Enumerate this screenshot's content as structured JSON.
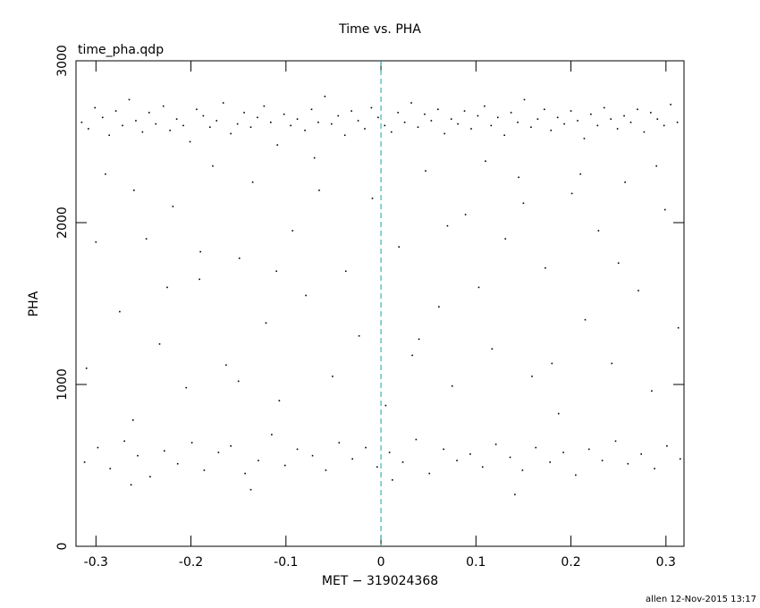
{
  "chart_data": {
    "type": "scatter",
    "title": "Time vs. PHA",
    "subtitle": "time_pha.qdp",
    "x_label": "MET − 319024368",
    "y_label": "PHA",
    "footer": "allen 12-Nov-2015 13:17",
    "xlim": [
      -0.321,
      0.319
    ],
    "xticks": [
      -0.3,
      -0.2,
      -0.1,
      0,
      0.1,
      0.2,
      0.3
    ],
    "ylim": [
      0,
      3000
    ],
    "yticks": [
      0,
      1000,
      2000,
      3000
    ],
    "marker_line_color": "#1aa3a3",
    "series": [
      {
        "color": "#000000",
        "x": [
          -0.315,
          -0.308,
          -0.301,
          -0.293,
          -0.286,
          -0.279,
          -0.272,
          -0.265,
          -0.258,
          -0.251,
          -0.244,
          -0.237,
          -0.229,
          -0.222,
          -0.215,
          -0.208,
          -0.201,
          -0.194,
          -0.187,
          -0.18,
          -0.173,
          -0.166,
          -0.158,
          -0.151,
          -0.144,
          -0.137,
          -0.13,
          -0.123,
          -0.116,
          -0.109,
          -0.102,
          -0.095,
          -0.088,
          -0.08,
          -0.073,
          -0.066,
          -0.059,
          -0.052,
          -0.045,
          -0.038,
          -0.031,
          -0.024,
          -0.017,
          -0.01,
          -0.003,
          0.004,
          0.011,
          0.018,
          0.025,
          0.032,
          0.039,
          0.046,
          0.053,
          0.06,
          0.067,
          0.074,
          0.081,
          0.088,
          0.095,
          0.102,
          0.109,
          0.116,
          0.123,
          0.13,
          0.137,
          0.144,
          0.151,
          0.158,
          0.165,
          0.172,
          0.179,
          0.186,
          0.193,
          0.2,
          0.207,
          0.214,
          0.221,
          0.228,
          0.235,
          0.242,
          0.249,
          0.256,
          0.263,
          0.27,
          0.277,
          0.284,
          0.291,
          0.298,
          0.305,
          0.312,
          -0.312,
          -0.298,
          -0.285,
          -0.27,
          -0.256,
          -0.243,
          -0.228,
          -0.214,
          -0.199,
          -0.186,
          -0.171,
          -0.158,
          -0.143,
          -0.129,
          -0.115,
          -0.101,
          -0.088,
          -0.072,
          -0.058,
          -0.044,
          -0.03,
          -0.016,
          -0.004,
          0.009,
          0.023,
          0.037,
          0.051,
          0.066,
          0.08,
          0.094,
          0.107,
          0.121,
          0.136,
          0.149,
          0.163,
          0.178,
          0.192,
          0.205,
          0.219,
          0.233,
          0.247,
          0.26,
          0.274,
          0.288,
          0.301,
          0.315,
          -0.263,
          -0.137,
          0.012,
          0.141,
          -0.31,
          -0.29,
          -0.275,
          -0.261,
          -0.247,
          -0.233,
          -0.219,
          -0.205,
          -0.191,
          -0.177,
          -0.163,
          -0.149,
          -0.135,
          -0.121,
          -0.107,
          -0.093,
          -0.079,
          -0.065,
          -0.051,
          -0.037,
          -0.023,
          -0.009,
          0.005,
          0.019,
          0.033,
          0.047,
          0.061,
          0.075,
          0.089,
          0.103,
          0.117,
          0.131,
          0.145,
          0.159,
          0.173,
          0.187,
          0.201,
          0.215,
          0.229,
          0.243,
          0.257,
          0.271,
          0.285,
          0.299,
          0.313,
          -0.3,
          -0.225,
          -0.15,
          -0.07,
          0.04,
          0.11,
          0.18,
          0.25,
          -0.26,
          -0.11,
          0.07,
          0.21,
          -0.19,
          0.15,
          0.29
        ],
        "values": [
          2620,
          2580,
          2710,
          2650,
          2540,
          2690,
          2600,
          2760,
          2630,
          2560,
          2680,
          2610,
          2720,
          2570,
          2640,
          2600,
          2500,
          2700,
          2660,
          2590,
          2630,
          2740,
          2550,
          2610,
          2680,
          2590,
          2650,
          2720,
          2620,
          2480,
          2670,
          2600,
          2640,
          2570,
          2700,
          2620,
          2780,
          2610,
          2660,
          2540,
          2690,
          2630,
          2580,
          2710,
          2650,
          2600,
          2560,
          2680,
          2620,
          2740,
          2590,
          2670,
          2630,
          2700,
          2550,
          2640,
          2610,
          2690,
          2580,
          2660,
          2720,
          2600,
          2650,
          2540,
          2680,
          2620,
          2760,
          2590,
          2640,
          2700,
          2570,
          2650,
          2610,
          2690,
          2630,
          2520,
          2670,
          2600,
          2710,
          2640,
          2580,
          2660,
          2620,
          2700,
          2560,
          2680,
          2640,
          2600,
          2730,
          2620,
          520,
          610,
          480,
          650,
          560,
          430,
          590,
          510,
          640,
          470,
          580,
          620,
          450,
          530,
          690,
          500,
          600,
          560,
          470,
          640,
          540,
          610,
          490,
          580,
          520,
          660,
          450,
          600,
          530,
          570,
          490,
          630,
          550,
          470,
          610,
          520,
          580,
          440,
          600,
          530,
          650,
          510,
          570,
          480,
          620,
          540,
          380,
          350,
          410,
          320,
          1100,
          2300,
          1450,
          780,
          1900,
          1250,
          2100,
          980,
          1650,
          2350,
          1120,
          1780,
          2250,
          1380,
          900,
          1950,
          1550,
          2200,
          1050,
          1700,
          1300,
          2150,
          870,
          1850,
          1180,
          2320,
          1480,
          990,
          2050,
          1600,
          1220,
          1900,
          2280,
          1050,
          1720,
          820,
          2180,
          1400,
          1950,
          1130,
          2250,
          1580,
          960,
          2080,
          1350,
          1880,
          1600,
          1020,
          2400,
          1280,
          2380,
          1130,
          1750,
          2200,
          1700,
          1980,
          2300,
          1820,
          2120,
          2350
        ]
      }
    ]
  }
}
